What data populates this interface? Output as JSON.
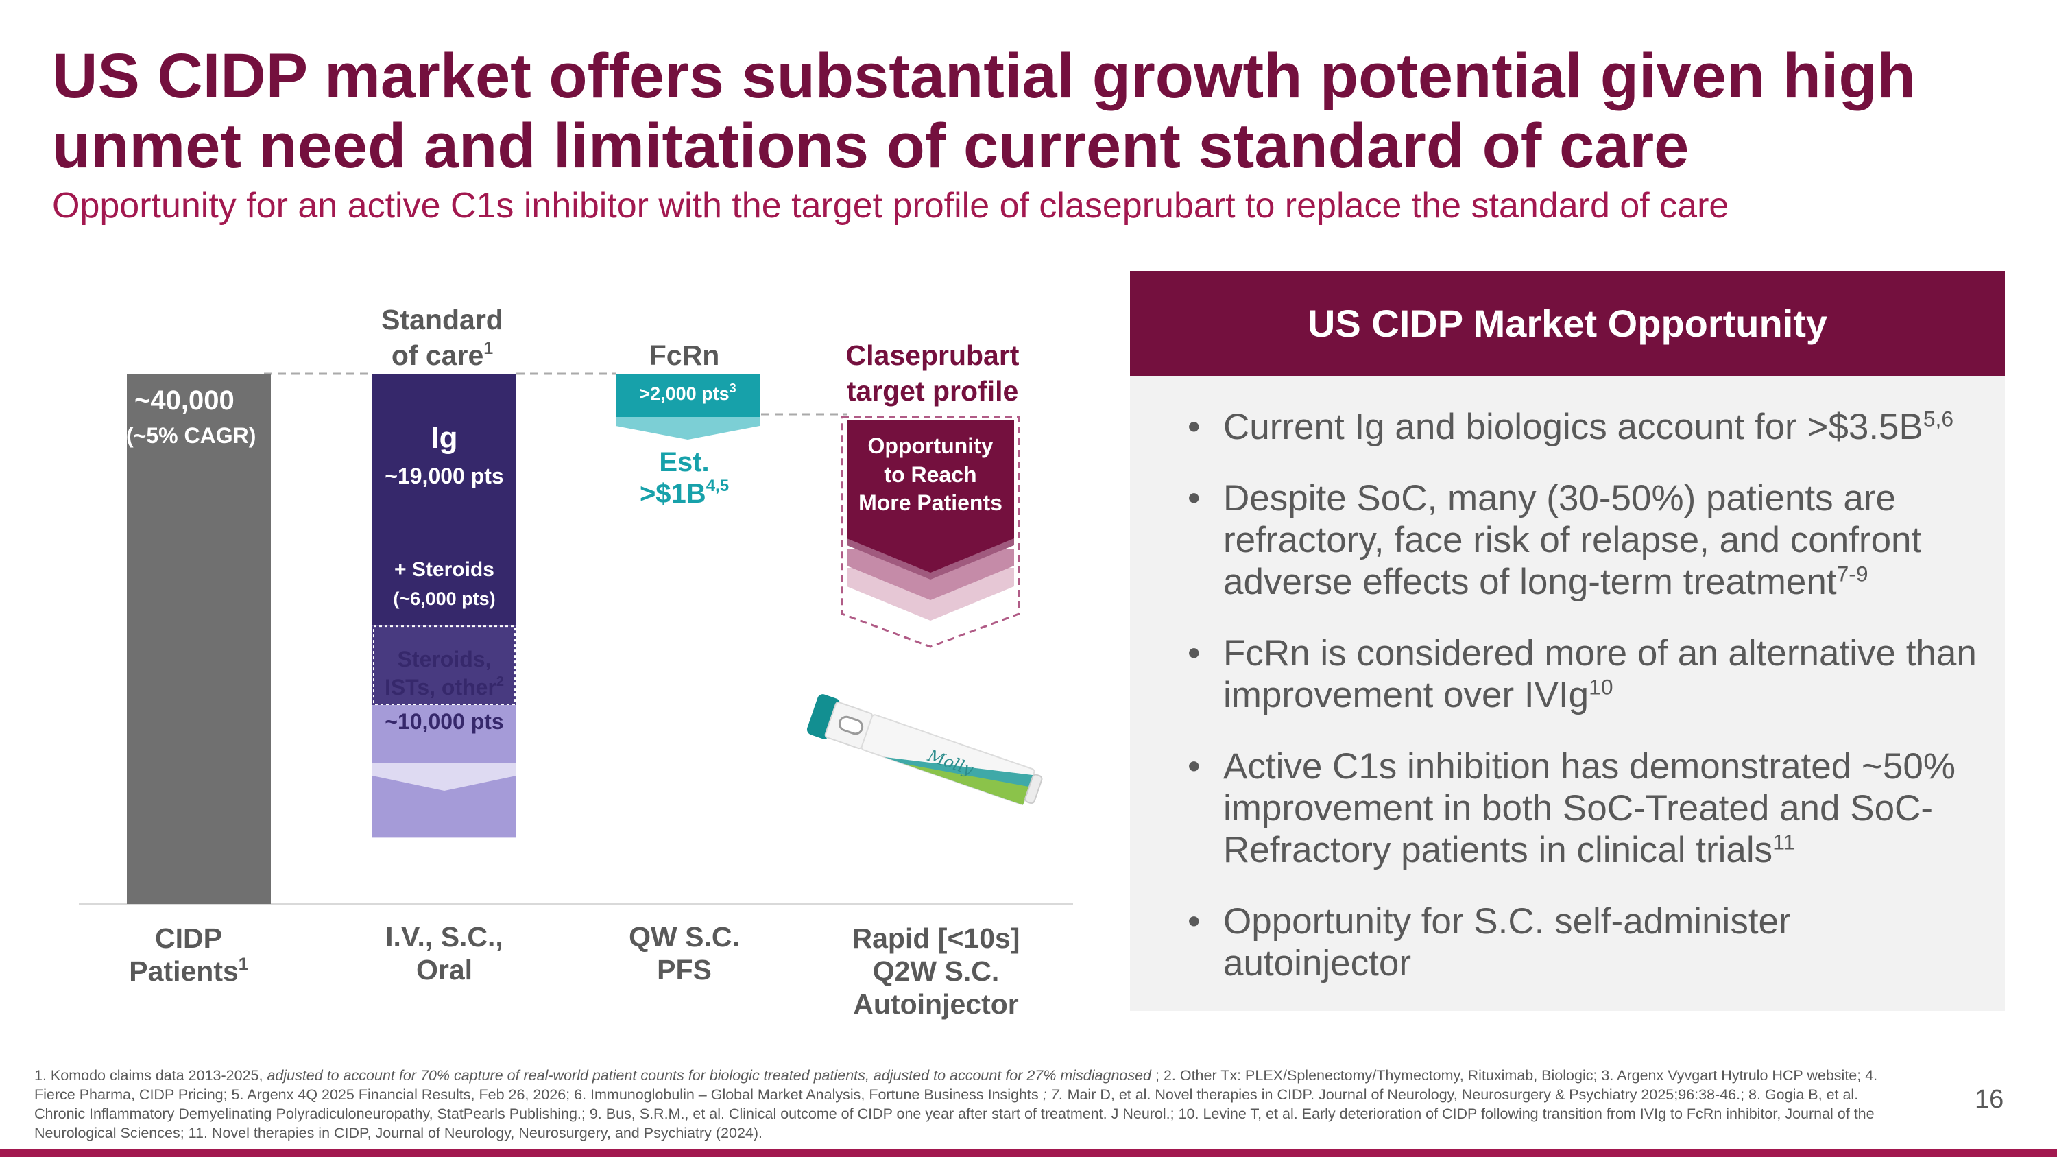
{
  "title": "US CIDP market offers substantial growth potential given high unmet need and limitations of current standard of care",
  "subtitle": "Opportunity for an active C1s inhibitor with the target profile of claseprubart to replace the standard of care",
  "colors": {
    "title": "#74103e",
    "subtitle": "#a2184f",
    "gray_bar": "#707070",
    "ig": "#36286b",
    "steroids": "#483a80",
    "other": "#a59bd8",
    "fcrn": "#17a1aa",
    "claseprubart": "#74103e"
  },
  "chart_data": {
    "type": "bar",
    "unit": "patients",
    "series": [
      {
        "name": "CIDP Patients",
        "values": [
          {
            "label": "~40,000",
            "value": 40000,
            "note": "(~5% CAGR)"
          }
        ]
      },
      {
        "name": "Standard of care",
        "values": [
          {
            "label": "Ig",
            "value": 19000,
            "text": "~19,000 pts"
          },
          {
            "label": "+ Steroids",
            "value": 6000,
            "text": "(~6,000 pts)"
          },
          {
            "label": "Steroids, ISTs, other",
            "value": 10000,
            "text": "~10,000 pts"
          }
        ]
      },
      {
        "name": "FcRn",
        "values": [
          {
            "label": ">2,000 pts",
            "value": 2000
          }
        ]
      }
    ],
    "ylim": [
      0,
      40000
    ],
    "columns": [
      {
        "header": "",
        "header_sup": "",
        "category": "CIDP Patients",
        "category_sup": "1"
      },
      {
        "header": "Standard of care",
        "header_sup": "1",
        "category": "I.V., S.C., Oral",
        "category_sup": ""
      },
      {
        "header": "FcRn",
        "header_sup": "",
        "category": "QW S.C. PFS",
        "category_sup": ""
      },
      {
        "header": "Claseprubart target profile",
        "header_sup": "",
        "category": "Rapid [<10s] Q2W S.C. Autoinjector",
        "category_sup": ""
      }
    ],
    "labels": {
      "total": "~40,000",
      "cagr": "(~5% CAGR)",
      "ig": "Ig",
      "ig_pts": "~19,000 pts",
      "steroids": "+ Steroids",
      "steroids_pts": "(~6,000 pts)",
      "other_line1": "Steroids,",
      "other_line2": "ISTs, other",
      "other_sup": "2",
      "other_pts": "~10,000 pts",
      "fcrn_pts": ">2,000 pts",
      "fcrn_pts_sup": "3",
      "est": "Est.",
      "est_value": ">$1B",
      "est_sup": "4,5",
      "opp_line1": "Opportunity",
      "opp_line2": "to Reach",
      "opp_line3": "More Patients",
      "autoinjector_brand": "Molly"
    }
  },
  "panel": {
    "header": "US CIDP Market Opportunity",
    "bullet_symbol": "•",
    "bullets": [
      {
        "lines": [
          "Current Ig and biologics account for >$3.5B"
        ],
        "sup": "5,6"
      },
      {
        "lines": [
          "Despite SoC, many (30-50%) patients are",
          "refractory, face risk of relapse, and confront",
          "adverse effects of long-term treatment"
        ],
        "sup": "7-9"
      },
      {
        "lines": [
          "FcRn is considered more of an alternative than",
          "improvement over IVIg"
        ],
        "sup": "10"
      },
      {
        "lines": [
          "Active C1s inhibition has demonstrated ~50%",
          "improvement in both SoC-Treated and SoC-",
          "Refractory patients in clinical trials"
        ],
        "sup": "11"
      },
      {
        "lines": [
          "Opportunity for S.C. self-administer",
          "autoinjector"
        ],
        "sup": ""
      }
    ]
  },
  "footnote": {
    "part1": "1. Komodo claims data 2013-2025, ",
    "part2_italic": "adjusted to account for 70% capture of real-world patient counts for biologic treated patients, adjusted to account for 27% misdiagnosed",
    "part3": " ; 2. Other Tx: PLEX/Splenectomy/Thymectomy, Rituximab, Biologic; 3. Argenx Vyvgart Hytrulo HCP website; 4. Fierce Pharma, CIDP Pricing; 5. Argenx 4Q 2025 Financial Results, Feb 26, 2026; 6. Immunoglobulin – Global Market Analysis, Fortune Business Insights ",
    "part4_italic": "; 7.",
    "part5": " Mair D, et al. Novel therapies in CIDP. Journal of Neurology, Neurosurgery & Psychiatry 2025;96:38-46.; 8. Gogia B, et al. Chronic Inflammatory Demyelinating Polyradiculoneuropathy, StatPearls Publishing.; 9. Bus, S.R.M., et al. Clinical outcome of CIDP one year after start of treatment. J Neurol.; 10. Levine T, et al. Early deterioration of CIDP following transition from IVIg to FcRn inhibitor, Journal of the Neurological Sciences; 11. Novel therapies in CIDP, Journal of Neurology, Neurosurgery, and Psychiatry (2024)."
  },
  "page_number": "16"
}
